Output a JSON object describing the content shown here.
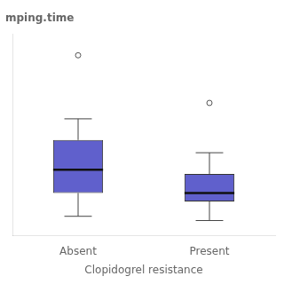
{
  "chart_data": {
    "type": "box",
    "title": "mping.time",
    "xlabel": "Clopidogrel resistance",
    "categories": [
      "Absent",
      "Present"
    ],
    "boxes": [
      {
        "q1": 40,
        "median": 62,
        "q3": 90,
        "whisker_low": 18,
        "whisker_high": 110,
        "outliers": [
          170
        ]
      },
      {
        "q1": 32,
        "median": 40,
        "q3": 58,
        "whisker_low": 14,
        "whisker_high": 78,
        "outliers": [
          125
        ]
      }
    ],
    "color": "#6060cc",
    "ylim": [
      0,
      190
    ],
    "grid": false,
    "tick_labels": "x"
  }
}
